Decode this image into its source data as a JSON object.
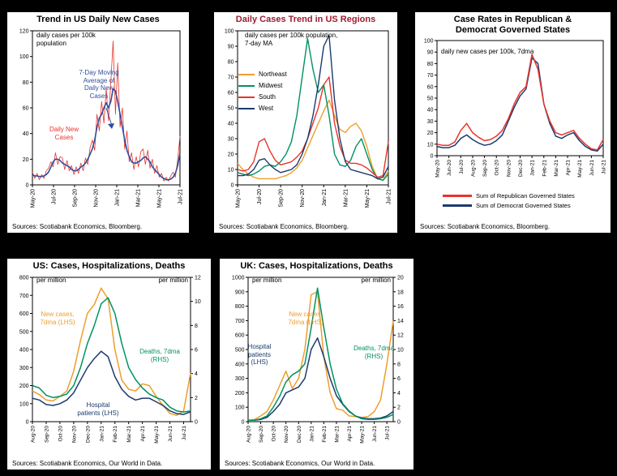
{
  "page": {
    "background": "#000000",
    "panel_background": "#FFFFFF"
  },
  "chart_data": [
    {
      "id": "us-daily-new-cases",
      "type": "line",
      "title": "Trend in US Daily New Cases",
      "note": "daily cases per 100k\npopulation",
      "source": "Sources: Scotiabank Economics, Bloomberg.",
      "x_span_months": 14,
      "xticks": {
        "labels": [
          "May-20",
          "Jul-20",
          "Sep-20",
          "Nov-20",
          "Jan-21",
          "Mar-21",
          "May-21",
          "Jul-21"
        ],
        "month_index": [
          0,
          2,
          4,
          6,
          8,
          10,
          12,
          14
        ]
      },
      "xtick_font": 7,
      "ylim": [
        0,
        120
      ],
      "ytick_step": 20,
      "grid": "off",
      "series": [
        {
          "name": "Daily New Cases",
          "color": "#E8342A",
          "width": 0.8,
          "values": [
            10,
            5,
            9,
            4,
            8,
            5,
            11,
            13,
            18,
            14,
            25,
            16,
            22,
            21,
            12,
            19,
            11,
            15,
            8,
            14,
            9,
            17,
            11,
            21,
            16,
            29,
            35,
            27,
            55,
            42,
            65,
            48,
            75,
            50,
            80,
            112,
            55,
            95,
            45,
            60,
            28,
            42,
            18,
            25,
            12,
            22,
            14,
            26,
            28,
            16,
            27,
            13,
            20,
            9,
            15,
            6,
            9,
            3,
            6,
            3,
            7,
            10,
            6,
            20,
            38
          ]
        },
        {
          "name": "7-Day Moving Average of Daily New Cases",
          "color": "#2F4D9E",
          "width": 1.6,
          "values": [
            8,
            7,
            7,
            6.5,
            6.5,
            7,
            8,
            10,
            14,
            18,
            20,
            20,
            19,
            17,
            16,
            15,
            14,
            12,
            11,
            11,
            12,
            14,
            15,
            17,
            20,
            24,
            28,
            35,
            45,
            52,
            55,
            60,
            64,
            60,
            65,
            75,
            73,
            65,
            55,
            45,
            35,
            27,
            22,
            18,
            17,
            17,
            18,
            19,
            21,
            22,
            20,
            18,
            14,
            12,
            10,
            8,
            6,
            5,
            4,
            4,
            4.5,
            6,
            9,
            15,
            25
          ]
        }
      ],
      "annotations": [
        {
          "text": "7-Day Moving\nAverage of\nDaily New\nCases"
        },
        {
          "text": "Daily New\nCases"
        }
      ]
    },
    {
      "id": "us-regions",
      "type": "line",
      "title": "Daily Cases Trend in US Regions",
      "title_color": "#9E1B32",
      "note": "daily cases per 100k population,\n7-day MA",
      "source": "Sources: Scotiabank Economics, Bloomberg.",
      "x_span_months": 14,
      "xticks": {
        "labels": [
          "May-20",
          "Jul-20",
          "Sep-20",
          "Nov-20",
          "Jan-21",
          "Mar-21",
          "May-21",
          "Jul-21"
        ],
        "month_index": [
          0,
          2,
          4,
          6,
          8,
          10,
          12,
          14
        ]
      },
      "xtick_font": 7,
      "ylim": [
        0,
        100
      ],
      "ytick_step": 10,
      "grid": "off",
      "legend_position": "upper-left",
      "series": [
        {
          "name": "Northeast",
          "color": "#EE9E2E",
          "width": 1.4,
          "values": [
            14,
            10,
            7,
            5,
            4,
            4,
            4,
            4,
            5,
            6,
            8,
            11,
            16,
            24,
            32,
            40,
            48,
            55,
            45,
            36,
            34,
            38,
            40,
            35,
            25,
            12,
            4,
            3,
            9
          ]
        },
        {
          "name": "Midwest",
          "color": "#009162",
          "width": 1.4,
          "values": [
            8,
            7,
            6,
            7,
            9,
            12,
            13,
            12,
            15,
            20,
            28,
            45,
            70,
            95,
            75,
            60,
            65,
            45,
            20,
            13,
            12,
            16,
            25,
            30,
            20,
            10,
            4,
            3,
            7
          ]
        },
        {
          "name": "South",
          "color": "#E8342A",
          "width": 1.4,
          "values": [
            10,
            9,
            10,
            15,
            28,
            30,
            22,
            16,
            13,
            14,
            15,
            18,
            22,
            30,
            40,
            50,
            65,
            70,
            40,
            25,
            16,
            14,
            14,
            13,
            11,
            8,
            5,
            6,
            28
          ]
        },
        {
          "name": "West",
          "color": "#1C3A6E",
          "width": 1.4,
          "values": [
            6,
            6,
            7,
            10,
            16,
            17,
            13,
            10,
            8,
            9,
            10,
            13,
            20,
            30,
            45,
            65,
            90,
            97,
            55,
            30,
            15,
            10,
            9,
            8,
            7,
            6,
            4,
            5,
            12
          ]
        }
      ]
    },
    {
      "id": "republican-democrat-states",
      "type": "line",
      "title": "Case Rates in Republican &\nDemocrat Governed States",
      "note": "daily new cases per 100k, 7dma",
      "source": "Sources: Scotiabank Economics, Bloomberg.",
      "x_span_months": 14,
      "xticks": {
        "labels": [
          "May-20",
          "Jun-20",
          "Jul-20",
          "Aug-20",
          "Sep-20",
          "Oct-20",
          "Nov-20",
          "Dec-20",
          "Jan-21",
          "Feb-21",
          "Mar-21",
          "Apr-21",
          "May-21",
          "Jun-21",
          "Jul-21"
        ],
        "month_index": [
          0,
          1,
          2,
          3,
          4,
          5,
          6,
          7,
          8,
          9,
          10,
          11,
          12,
          13,
          14
        ]
      },
      "xtick_font": 6.5,
      "ylim": [
        0,
        100
      ],
      "ytick_step": 10,
      "grid": "off",
      "legend_position": "below",
      "series": [
        {
          "name": "Sum of Democrat Governed States",
          "color": "#1C3A6E",
          "width": 1.5,
          "values": [
            8,
            7,
            7,
            9,
            15,
            18,
            14,
            11,
            9,
            10,
            13,
            18,
            30,
            42,
            52,
            58,
            85,
            80,
            45,
            28,
            17,
            15,
            18,
            20,
            13,
            8,
            5,
            4,
            10
          ]
        },
        {
          "name": "Sum of Republican Governed States",
          "color": "#E8342A",
          "width": 1.5,
          "values": [
            10,
            9,
            9,
            12,
            22,
            28,
            20,
            16,
            13,
            14,
            17,
            22,
            32,
            45,
            55,
            60,
            88,
            75,
            45,
            30,
            20,
            18,
            20,
            22,
            15,
            10,
            6,
            5,
            14
          ]
        }
      ]
    },
    {
      "id": "us-cases-hosp-deaths",
      "type": "line",
      "title": "US: Cases, Hospitalizations, Deaths",
      "note_left": "per million",
      "note_right": "per million",
      "source": "Sources: Scotiabank Economics, Our World in Data.",
      "x_span_months": 11.5,
      "xticks": {
        "labels": [
          "Aug-20",
          "Sep-20",
          "Oct-20",
          "Nov-20",
          "Dec-20",
          "Jan-21",
          "Feb-21",
          "Mar-21",
          "Apr-21",
          "May-21",
          "Jun-21",
          "Jul-21"
        ],
        "month_index": [
          0,
          1,
          2,
          3,
          4,
          5,
          6,
          7,
          8,
          9,
          10,
          11
        ]
      },
      "xtick_font": 6.5,
      "ylim": [
        0,
        800
      ],
      "ytick_step": 100,
      "y2lim": [
        0,
        12
      ],
      "y2tick_step": 2,
      "grid": "off",
      "series": [
        {
          "name": "New cases, 7dma (LHS)",
          "color": "#EE9E2E",
          "width": 1.5,
          "values": [
            170,
            150,
            120,
            115,
            140,
            170,
            280,
            450,
            600,
            650,
            740,
            680,
            400,
            230,
            180,
            170,
            210,
            200,
            140,
            90,
            45,
            35,
            60,
            270
          ]
        },
        {
          "name": "Hospital patients (LHS)",
          "color": "#1C3A6E",
          "width": 1.5,
          "values": [
            130,
            120,
            95,
            90,
            100,
            120,
            160,
            230,
            300,
            350,
            390,
            360,
            250,
            180,
            140,
            120,
            130,
            130,
            110,
            90,
            60,
            45,
            40,
            55
          ]
        },
        {
          "name": "Deaths, 7dma (RHS)",
          "color": "#009162",
          "width": 1.5,
          "axis": "right",
          "values": [
            3.0,
            2.8,
            2.2,
            2.0,
            2.1,
            2.3,
            3.0,
            4.5,
            6.5,
            8.0,
            9.8,
            10.3,
            9.0,
            6.5,
            4.5,
            3.5,
            2.8,
            2.3,
            2.0,
            1.8,
            1.2,
            0.9,
            0.8,
            0.9
          ]
        }
      ],
      "annotations": [
        {
          "text": "New cases,\n7dma (LHS)"
        },
        {
          "text": "Deaths, 7dma\n(RHS)"
        },
        {
          "text": "Hospital\npatients (LHS)"
        }
      ]
    },
    {
      "id": "uk-cases-hosp-deaths",
      "type": "line",
      "title": "UK: Cases, Hospitalizations, Deaths",
      "note_left": "per million",
      "note_right": "per million",
      "source": "Sources: Scotiabank Economics, Our World in Data.",
      "x_span_months": 11.5,
      "xticks": {
        "labels": [
          "Aug-20",
          "Sep-20",
          "Oct-20",
          "Nov-20",
          "Dec-20",
          "Jan-21",
          "Feb-21",
          "Mar-21",
          "Apr-21",
          "May-21",
          "Jun-21",
          "Jul-21"
        ],
        "month_index": [
          0,
          1,
          2,
          3,
          4,
          5,
          6,
          7,
          8,
          9,
          10,
          11
        ]
      },
      "xtick_font": 6.5,
      "ylim": [
        0,
        1000
      ],
      "ytick_step": 100,
      "y2lim": [
        0,
        20
      ],
      "y2tick_step": 2,
      "grid": "off",
      "series": [
        {
          "name": "New cases, 7dma (LHS)",
          "color": "#EE9E2E",
          "width": 1.5,
          "values": [
            10,
            15,
            40,
            70,
            150,
            250,
            350,
            230,
            300,
            500,
            880,
            900,
            450,
            200,
            90,
            80,
            40,
            35,
            30,
            35,
            70,
            150,
            400,
            700
          ]
        },
        {
          "name": "Hospital patients (LHS)",
          "color": "#1C3A6E",
          "width": 1.5,
          "values": [
            10,
            10,
            15,
            30,
            70,
            120,
            200,
            220,
            240,
            300,
            500,
            580,
            450,
            300,
            180,
            120,
            70,
            40,
            25,
            20,
            20,
            25,
            40,
            70
          ]
        },
        {
          "name": "Deaths, 7dma (RHS)",
          "color": "#009162",
          "width": 1.5,
          "axis": "right",
          "values": [
            0.2,
            0.2,
            0.4,
            0.8,
            2,
            3.5,
            5.5,
            6.5,
            7,
            8,
            13,
            18.5,
            13,
            8,
            4.5,
            2.5,
            1.5,
            0.8,
            0.4,
            0.3,
            0.3,
            0.4,
            0.6,
            1.0
          ]
        }
      ],
      "annotations": [
        {
          "text": "New cases,\n7dma (LHS)"
        },
        {
          "text": "Hospital\npatients\n(LHS)"
        },
        {
          "text": "Deaths, 7dma\n(RHS)"
        }
      ]
    }
  ]
}
